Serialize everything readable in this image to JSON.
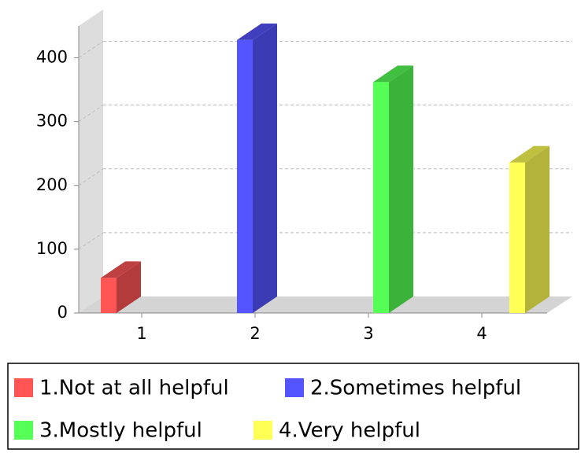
{
  "chart_data": {
    "type": "bar",
    "categories": [
      "1",
      "2",
      "3",
      "4"
    ],
    "values": [
      55,
      428,
      362,
      236
    ],
    "colors": [
      "#ff5555",
      "#5555ff",
      "#55ff55",
      "#ffff55"
    ],
    "legend": [
      "1.Not at all helpful",
      "2.Sometimes helpful",
      "3.Mostly helpful",
      "4.Very helpful"
    ],
    "ylim": [
      0,
      450
    ],
    "yticks": [
      0,
      100,
      200,
      300,
      400
    ],
    "grid": true
  }
}
